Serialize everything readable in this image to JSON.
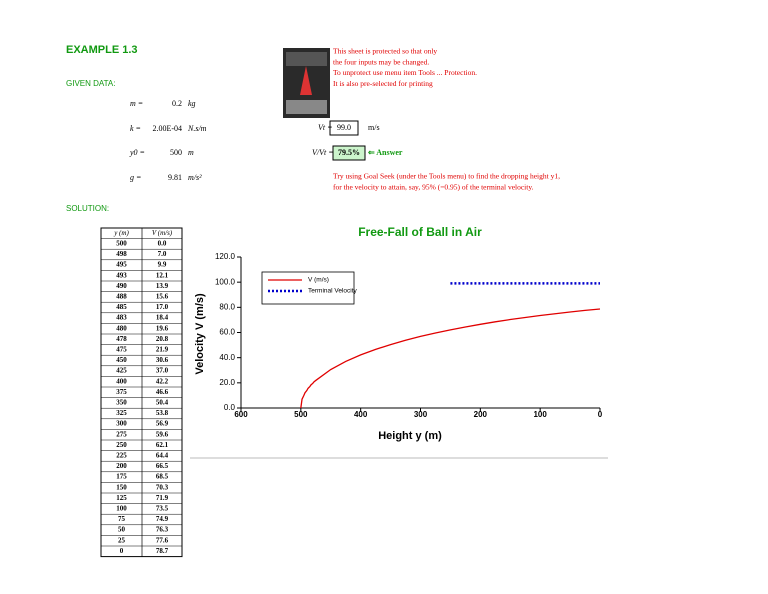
{
  "header": {
    "title": "EXAMPLE 1.3",
    "given_label": "GIVEN DATA:",
    "solution_label": "SOLUTION:"
  },
  "given": [
    {
      "label": "m =",
      "value": "0.2",
      "unit": "kg"
    },
    {
      "label": "k =",
      "value": "2.00E-04",
      "unit": "N.s/m"
    },
    {
      "label": "y0 =",
      "value": "500",
      "unit": "m"
    },
    {
      "label": "g =",
      "value": "9.81",
      "unit": "m/s²"
    }
  ],
  "results": {
    "vt_label": "Vt =",
    "vt_value": "99.0",
    "vt_unit": "m/s",
    "ratio_label": "V/Vt =",
    "ratio_value": "79.5%",
    "answer": "⇐ Answer"
  },
  "notes": {
    "protection": [
      "This sheet is protected so that only",
      "the four inputs may be changed.",
      "To unprotect use menu item Tools ... Protection.",
      "It is also pre-selected for printing"
    ],
    "goal_seek": [
      "Try using Goal Seek (under the Tools menu) to find the dropping height y1,",
      "for the velocity to attain, say, 95% (=0.95) of the terminal velocity."
    ]
  },
  "table": {
    "headers": [
      "y (m)",
      "V (m/s)"
    ],
    "rows": [
      [
        "500",
        "0.0"
      ],
      [
        "498",
        "7.0"
      ],
      [
        "495",
        "9.9"
      ],
      [
        "493",
        "12.1"
      ],
      [
        "490",
        "13.9"
      ],
      [
        "488",
        "15.6"
      ],
      [
        "485",
        "17.0"
      ],
      [
        "483",
        "18.4"
      ],
      [
        "480",
        "19.6"
      ],
      [
        "478",
        "20.8"
      ],
      [
        "475",
        "21.9"
      ],
      [
        "450",
        "30.6"
      ],
      [
        "425",
        "37.0"
      ],
      [
        "400",
        "42.2"
      ],
      [
        "375",
        "46.6"
      ],
      [
        "350",
        "50.4"
      ],
      [
        "325",
        "53.8"
      ],
      [
        "300",
        "56.9"
      ],
      [
        "275",
        "59.6"
      ],
      [
        "250",
        "62.1"
      ],
      [
        "225",
        "64.4"
      ],
      [
        "200",
        "66.5"
      ],
      [
        "175",
        "68.5"
      ],
      [
        "150",
        "70.3"
      ],
      [
        "125",
        "71.9"
      ],
      [
        "100",
        "73.5"
      ],
      [
        "75",
        "74.9"
      ],
      [
        "50",
        "76.3"
      ],
      [
        "25",
        "77.6"
      ],
      [
        "0",
        "78.7"
      ]
    ]
  },
  "chart_data": {
    "type": "line",
    "title": "Free-Fall of Ball in Air",
    "x_label": "Height y (m)",
    "y_label": "Velocity V (m/s)",
    "x": [
      500,
      498,
      495,
      493,
      490,
      488,
      485,
      483,
      480,
      478,
      475,
      450,
      425,
      400,
      375,
      350,
      325,
      300,
      275,
      250,
      225,
      200,
      175,
      150,
      125,
      100,
      75,
      50,
      25,
      0
    ],
    "series": [
      {
        "name": "V (m/s)",
        "color": "#e00000",
        "style": "solid",
        "values": [
          0.0,
          7.0,
          9.9,
          12.1,
          13.9,
          15.6,
          17.0,
          18.4,
          19.6,
          20.8,
          21.9,
          30.6,
          37.0,
          42.2,
          46.6,
          50.4,
          53.8,
          56.9,
          59.6,
          62.1,
          64.4,
          66.5,
          68.5,
          70.3,
          71.9,
          73.5,
          74.9,
          76.3,
          77.6,
          78.7
        ]
      },
      {
        "name": "Terminal Velocity",
        "color": "#0000cc",
        "style": "dotted",
        "values": [
          null,
          null,
          null,
          null,
          null,
          null,
          null,
          null,
          null,
          null,
          null,
          null,
          null,
          null,
          null,
          null,
          null,
          null,
          null,
          99,
          99,
          99,
          99,
          99,
          99,
          99,
          99,
          99,
          99,
          99
        ]
      }
    ],
    "xlim": [
      600,
      0
    ],
    "xticks": [
      600,
      500,
      400,
      300,
      200,
      100,
      0
    ],
    "ylim": [
      0,
      120
    ],
    "yticks": [
      {
        "value": 0,
        "label": "0.0"
      },
      {
        "value": 20,
        "label": "20.0"
      },
      {
        "value": 40,
        "label": "40.0"
      },
      {
        "value": 60,
        "label": "60.0"
      },
      {
        "value": 80,
        "label": "80.0"
      },
      {
        "value": 100,
        "label": "100.0"
      },
      {
        "value": 120,
        "label": "120.0"
      }
    ],
    "legend": "upper-left"
  }
}
